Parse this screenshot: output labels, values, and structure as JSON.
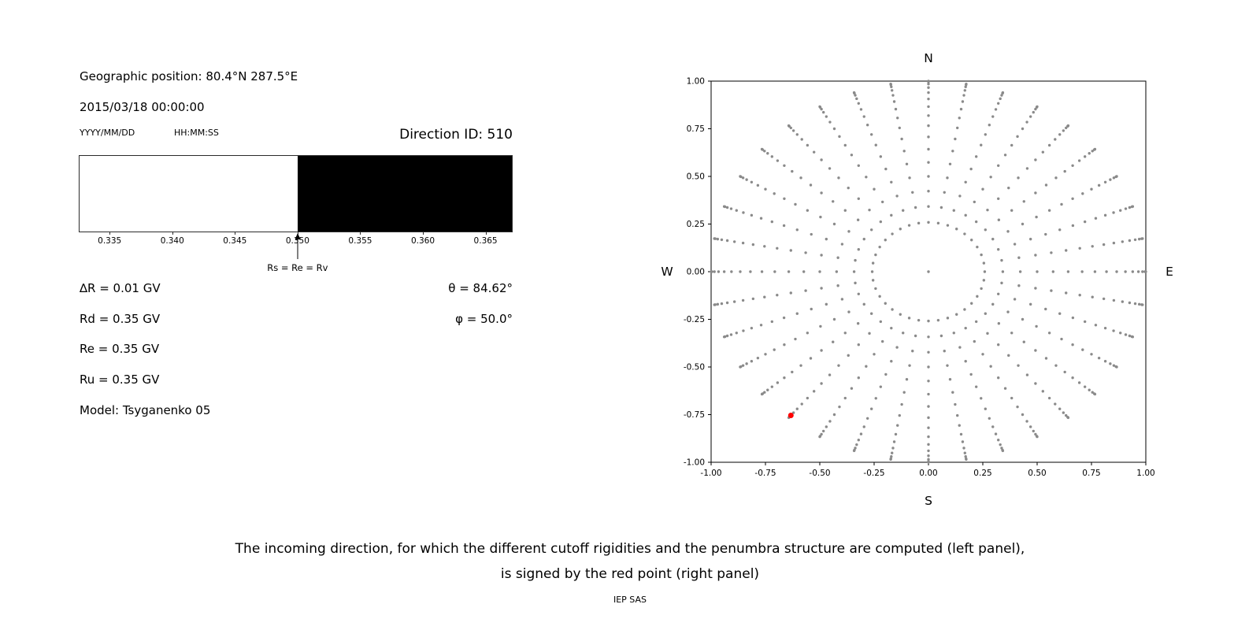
{
  "left_panel": {
    "geo_position": "Geographic position: 80.4°N 287.5°E",
    "datetime": "2015/03/18 00:00:00",
    "date_format_label": "YYYY/MM/DD",
    "time_format_label": "HH:MM:SS",
    "direction_id": "Direction ID: 510",
    "params": [
      "∆R = 0.01 GV",
      "Rd = 0.35 GV",
      "Re = 0.35 GV",
      "Ru = 0.35 GV",
      "Model: Tsyganenko 05"
    ],
    "angles": [
      "θ = 84.62°",
      "φ = 50.0°"
    ]
  },
  "caption": {
    "line1": "The incoming direction, for which the different cutoff rigidities and the penumbra structure are computed (left panel),",
    "line2": "is signed by the red point (right panel)",
    "credit": "IEP SAS"
  },
  "chart_data": [
    {
      "type": "bar",
      "name": "penumbra-structure-band",
      "x_range": [
        0.3326,
        0.3671
      ],
      "segments": [
        {
          "from": 0.3326,
          "to": 0.35,
          "state": "allowed",
          "color": "#ffffff"
        },
        {
          "from": 0.35,
          "to": 0.3671,
          "state": "forbidden",
          "color": "#000000"
        }
      ],
      "x_ticks": [
        0.335,
        0.34,
        0.345,
        0.35,
        0.355,
        0.36,
        0.365
      ],
      "x_tick_labels": [
        "0.335",
        "0.340",
        "0.345",
        "0.350",
        "0.355",
        "0.360",
        "0.365"
      ],
      "marker": {
        "x": 0.35,
        "label": "Rs = Re = Rv"
      }
    },
    {
      "type": "scatter",
      "name": "incoming-directions-map",
      "xlim": [
        -1.0,
        1.0
      ],
      "ylim": [
        -1.0,
        1.0
      ],
      "x_ticks": [
        -1.0,
        -0.75,
        -0.5,
        -0.25,
        0.0,
        0.25,
        0.5,
        0.75,
        1.0
      ],
      "x_tick_labels": [
        "-1.00",
        "-0.75",
        "-0.50",
        "-0.25",
        "0.00",
        "0.25",
        "0.50",
        "0.75",
        "1.00"
      ],
      "y_ticks": [
        1.0,
        0.75,
        0.5,
        0.25,
        0.0,
        -0.25,
        -0.5,
        -0.75,
        -1.0
      ],
      "y_tick_labels": [
        "1.00",
        "0.75",
        "0.50",
        "0.25",
        "0.00",
        "-0.25",
        "-0.50",
        "-0.75",
        "-1.00"
      ],
      "compass": {
        "top": "N",
        "bottom": "S",
        "left": "W",
        "right": "E"
      },
      "grid_points": {
        "azimuth_start_deg": 0,
        "azimuth_step_deg": 10,
        "azimuth_count": 36,
        "zenith_deg": [
          0,
          15,
          20,
          25,
          30,
          35,
          40,
          45,
          50,
          55,
          60,
          65,
          70,
          75,
          80,
          85,
          90
        ],
        "radius_rule": "sin(zenith)",
        "color": "#8a8a8a",
        "marker_radius_px": 1.7
      },
      "highlight_point": {
        "x": -0.633,
        "y": -0.754,
        "color": "#ff0000",
        "marker_radius_px": 3.5
      }
    }
  ]
}
